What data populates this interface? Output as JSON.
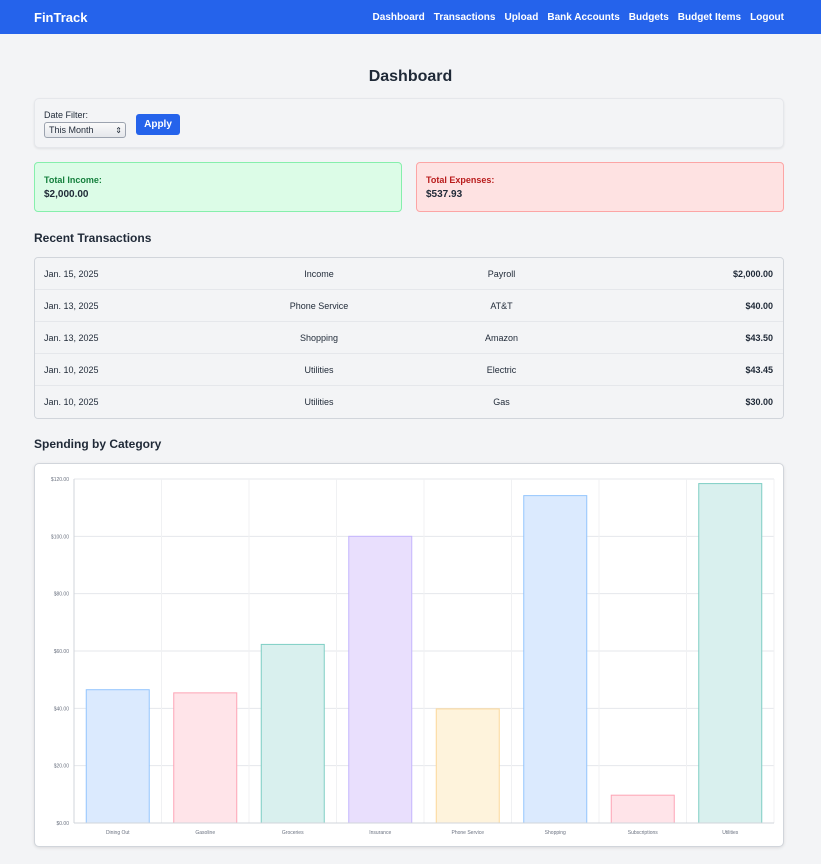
{
  "app": {
    "brand": "FinTrack"
  },
  "nav": [
    "Dashboard",
    "Transactions",
    "Upload",
    "Bank Accounts",
    "Budgets",
    "Budget Items",
    "Logout"
  ],
  "page": {
    "title": "Dashboard"
  },
  "filter": {
    "label": "Date Filter:",
    "selected": "This Month",
    "apply_label": "Apply"
  },
  "summary": {
    "income_label": "Total Income:",
    "income_value": "$2,000.00",
    "expense_label": "Total Expenses:",
    "expense_value": "$537.93"
  },
  "transactions": {
    "title": "Recent Transactions",
    "rows": [
      {
        "date": "Jan. 15, 2025",
        "category": "Income",
        "description": "Payroll",
        "amount": "$2,000.00"
      },
      {
        "date": "Jan. 13, 2025",
        "category": "Phone Service",
        "description": "AT&T",
        "amount": "$40.00"
      },
      {
        "date": "Jan. 13, 2025",
        "category": "Shopping",
        "description": "Amazon",
        "amount": "$43.50"
      },
      {
        "date": "Jan. 10, 2025",
        "category": "Utilities",
        "description": "Electric",
        "amount": "$43.45"
      },
      {
        "date": "Jan. 10, 2025",
        "category": "Utilities",
        "description": "Gas",
        "amount": "$30.00"
      }
    ]
  },
  "chart_section": {
    "title": "Spending by Category"
  },
  "colors": {
    "primary": "#2563eb"
  },
  "chart_data": {
    "type": "bar",
    "categories": [
      "Dining Out",
      "Gasoline",
      "Groceries",
      "Insurance",
      "Phone Service",
      "Shopping",
      "Subscriptions",
      "Utilities"
    ],
    "values": [
      46.5,
      45.4,
      62.3,
      100.0,
      39.8,
      114.2,
      9.7,
      118.4
    ],
    "ylim": [
      0,
      120
    ],
    "yticks": [
      "$0.00",
      "$20.00",
      "$40.00",
      "$60.00",
      "$80.00",
      "$100.00",
      "$120.00"
    ],
    "bar_fills": [
      "#dbeafe",
      "#ffe4e9",
      "#d9f0ee",
      "#e9dffd",
      "#fef3dc",
      "#dbeafe",
      "#ffe4e9",
      "#d9f0ee"
    ],
    "bar_strokes": [
      "#93c5fd",
      "#fda4b5",
      "#7ecec4",
      "#c4b5fd",
      "#fcd89a",
      "#93c5fd",
      "#fda4b5",
      "#7ecec4"
    ],
    "grid": true,
    "legend": "none"
  }
}
